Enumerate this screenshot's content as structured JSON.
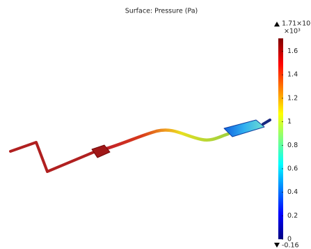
{
  "chart_data": {
    "type": "surface",
    "title": "Surface: Pressure (Pa)",
    "colorbar": {
      "max_label": "1.71×10³",
      "multiplier": "×10³",
      "min_label": "-0.16",
      "ylim": [
        0,
        1.71
      ],
      "yticks": [
        0,
        0.2,
        0.4,
        0.6,
        0.8,
        1,
        1.2,
        1.4,
        1.6
      ],
      "colormap": [
        "#00007f",
        "#0000ff",
        "#0080ff",
        "#00ffff",
        "#80ff80",
        "#ffff00",
        "#ff8000",
        "#ff0000",
        "#7f0000"
      ]
    }
  }
}
